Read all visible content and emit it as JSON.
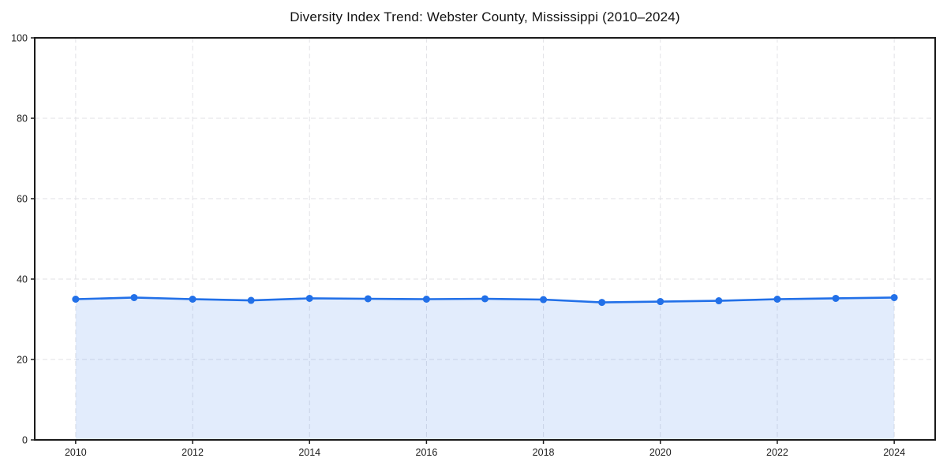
{
  "page": {
    "background": "#ffffff"
  },
  "chart_data": {
    "type": "line",
    "title": "Diversity Index Trend: Webster County, Mississippi (2010–2024)",
    "xlabel": "",
    "ylabel": "",
    "x": [
      2010,
      2011,
      2012,
      2013,
      2014,
      2015,
      2016,
      2017,
      2018,
      2019,
      2020,
      2021,
      2022,
      2023,
      2024
    ],
    "series": [
      {
        "name": "Diversity Index",
        "values": [
          35.0,
          35.4,
          35.0,
          34.7,
          35.2,
          35.1,
          35.0,
          35.1,
          34.9,
          34.2,
          34.4,
          34.6,
          35.0,
          35.2,
          35.4
        ]
      }
    ],
    "xlim": [
      2009.3,
      2024.7
    ],
    "ylim": [
      0,
      100
    ],
    "xticks": [
      2010,
      2012,
      2014,
      2016,
      2018,
      2020,
      2022,
      2024
    ],
    "yticks": [
      0,
      20,
      40,
      60,
      80,
      100
    ],
    "grid": true,
    "grid_style": "dashed",
    "legend": "none",
    "area_fill": true,
    "line_color": "#2270e8",
    "fill_color": "rgba(34, 112, 232, 0.13)",
    "grid_color": "#e2e2e6",
    "frame_color": "#1a1a1a",
    "tick_text_color": "#1c1c1c",
    "marker": "circle",
    "marker_radius": 4.5,
    "line_width": 2.6
  }
}
